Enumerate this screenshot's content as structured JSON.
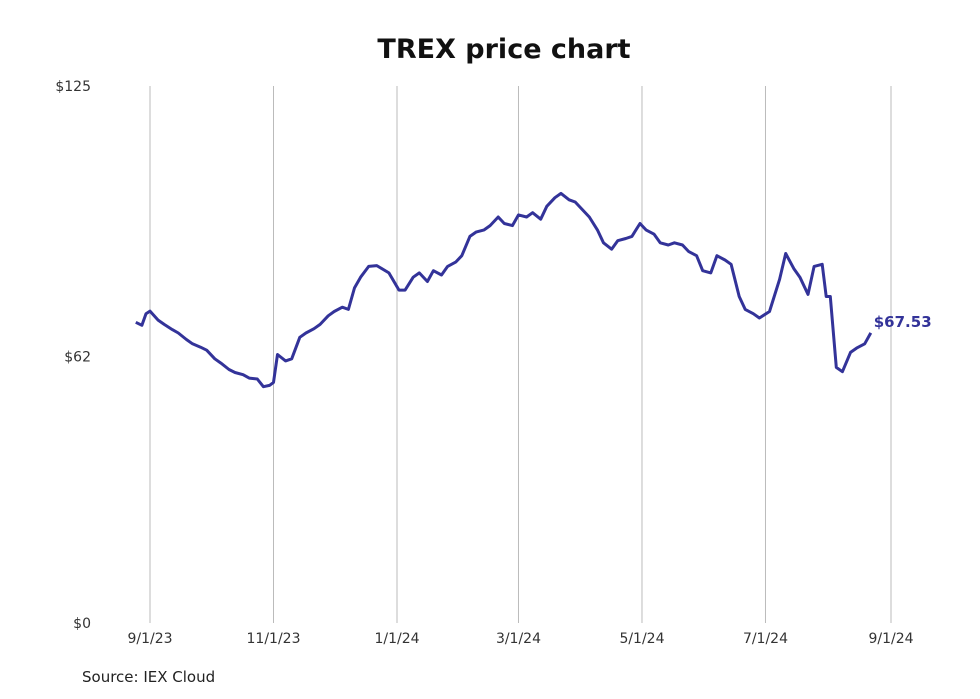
{
  "chart_data": {
    "type": "line",
    "title": "TREX price chart",
    "source": "Source: IEX Cloud",
    "xlabel": "",
    "ylabel": "",
    "x_start": "2023-08-25",
    "x_end": "2024-08-22",
    "x_tick_labels": [
      "9/1/23",
      "11/1/23",
      "1/1/24",
      "3/1/24",
      "5/1/24",
      "7/1/24",
      "9/1/24"
    ],
    "x_tick_dates": [
      "2023-09-01",
      "2023-11-01",
      "2024-01-01",
      "2024-03-01",
      "2024-05-01",
      "2024-07-01",
      "2024-09-01"
    ],
    "y_tick_labels": [
      "$0",
      "$62",
      "$125"
    ],
    "y_tick_values": [
      0,
      62,
      125
    ],
    "ylim": [
      0,
      125
    ],
    "grid": "vertical",
    "line_color": "#333399",
    "last_value_label": "$67.53",
    "series": [
      {
        "values": [
          [
            "2023-08-25",
            70.0
          ],
          [
            "2023-08-28",
            69.3
          ],
          [
            "2023-08-30",
            72.0
          ],
          [
            "2023-09-01",
            72.6
          ],
          [
            "2023-09-05",
            70.5
          ],
          [
            "2023-09-08",
            69.5
          ],
          [
            "2023-09-12",
            68.3
          ],
          [
            "2023-09-15",
            67.5
          ],
          [
            "2023-09-19",
            66.0
          ],
          [
            "2023-09-22",
            65.0
          ],
          [
            "2023-09-26",
            64.2
          ],
          [
            "2023-09-29",
            63.5
          ],
          [
            "2023-10-03",
            61.5
          ],
          [
            "2023-10-06",
            60.5
          ],
          [
            "2023-10-10",
            59.0
          ],
          [
            "2023-10-13",
            58.3
          ],
          [
            "2023-10-17",
            57.8
          ],
          [
            "2023-10-20",
            57.0
          ],
          [
            "2023-10-24",
            56.8
          ],
          [
            "2023-10-27",
            55.0
          ],
          [
            "2023-10-30",
            55.3
          ],
          [
            "2023-11-01",
            56.0
          ],
          [
            "2023-11-03",
            62.5
          ],
          [
            "2023-11-07",
            61.0
          ],
          [
            "2023-11-10",
            61.5
          ],
          [
            "2023-11-14",
            66.5
          ],
          [
            "2023-11-17",
            67.5
          ],
          [
            "2023-11-21",
            68.5
          ],
          [
            "2023-11-24",
            69.5
          ],
          [
            "2023-11-28",
            71.5
          ],
          [
            "2023-12-01",
            72.5
          ],
          [
            "2023-12-05",
            73.5
          ],
          [
            "2023-12-08",
            73.0
          ],
          [
            "2023-12-11",
            78.0
          ],
          [
            "2023-12-14",
            80.5
          ],
          [
            "2023-12-18",
            83.0
          ],
          [
            "2023-12-22",
            83.2
          ],
          [
            "2023-12-28",
            81.5
          ],
          [
            "2024-01-02",
            77.5
          ],
          [
            "2024-01-05",
            77.5
          ],
          [
            "2024-01-09",
            80.5
          ],
          [
            "2024-01-12",
            81.5
          ],
          [
            "2024-01-16",
            79.5
          ],
          [
            "2024-01-19",
            82.0
          ],
          [
            "2024-01-23",
            81.0
          ],
          [
            "2024-01-26",
            83.0
          ],
          [
            "2024-01-30",
            84.0
          ],
          [
            "2024-02-02",
            85.5
          ],
          [
            "2024-02-06",
            90.0
          ],
          [
            "2024-02-09",
            91.0
          ],
          [
            "2024-02-13",
            91.5
          ],
          [
            "2024-02-16",
            92.5
          ],
          [
            "2024-02-20",
            94.5
          ],
          [
            "2024-02-23",
            93.0
          ],
          [
            "2024-02-27",
            92.5
          ],
          [
            "2024-03-01",
            95.0
          ],
          [
            "2024-03-05",
            94.5
          ],
          [
            "2024-03-08",
            95.5
          ],
          [
            "2024-03-12",
            94.0
          ],
          [
            "2024-03-15",
            97.0
          ],
          [
            "2024-03-19",
            99.0
          ],
          [
            "2024-03-22",
            100.0
          ],
          [
            "2024-03-26",
            98.5
          ],
          [
            "2024-03-29",
            98.0
          ],
          [
            "2024-04-02",
            96.0
          ],
          [
            "2024-04-05",
            94.5
          ],
          [
            "2024-04-09",
            91.5
          ],
          [
            "2024-04-12",
            88.5
          ],
          [
            "2024-04-16",
            87.0
          ],
          [
            "2024-04-19",
            89.0
          ],
          [
            "2024-04-23",
            89.5
          ],
          [
            "2024-04-26",
            90.0
          ],
          [
            "2024-04-30",
            93.0
          ],
          [
            "2024-05-03",
            91.5
          ],
          [
            "2024-05-07",
            90.5
          ],
          [
            "2024-05-10",
            88.5
          ],
          [
            "2024-05-14",
            88.0
          ],
          [
            "2024-05-17",
            88.5
          ],
          [
            "2024-05-21",
            88.0
          ],
          [
            "2024-05-24",
            86.5
          ],
          [
            "2024-05-28",
            85.5
          ],
          [
            "2024-05-31",
            82.0
          ],
          [
            "2024-06-04",
            81.5
          ],
          [
            "2024-06-07",
            85.5
          ],
          [
            "2024-06-11",
            84.5
          ],
          [
            "2024-06-14",
            83.5
          ],
          [
            "2024-06-18",
            76.0
          ],
          [
            "2024-06-21",
            73.0
          ],
          [
            "2024-06-25",
            72.0
          ],
          [
            "2024-06-28",
            71.0
          ],
          [
            "2024-07-03",
            72.5
          ],
          [
            "2024-07-08",
            80.0
          ],
          [
            "2024-07-11",
            86.0
          ],
          [
            "2024-07-15",
            82.5
          ],
          [
            "2024-07-18",
            80.5
          ],
          [
            "2024-07-22",
            76.5
          ],
          [
            "2024-07-25",
            83.0
          ],
          [
            "2024-07-29",
            83.5
          ],
          [
            "2024-07-31",
            76.0
          ],
          [
            "2024-08-02",
            76.0
          ],
          [
            "2024-08-05",
            59.5
          ],
          [
            "2024-08-08",
            58.5
          ],
          [
            "2024-08-12",
            63.0
          ],
          [
            "2024-08-15",
            64.0
          ],
          [
            "2024-08-19",
            65.0
          ],
          [
            "2024-08-22",
            67.53
          ]
        ]
      }
    ]
  }
}
